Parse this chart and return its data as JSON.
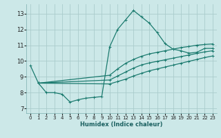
{
  "xlabel": "Humidex (Indice chaleur)",
  "xlim": [
    -0.5,
    23.5
  ],
  "ylim": [
    6.7,
    13.6
  ],
  "yticks": [
    7,
    8,
    9,
    10,
    11,
    12,
    13
  ],
  "xticks": [
    0,
    1,
    2,
    3,
    4,
    5,
    6,
    7,
    8,
    9,
    10,
    11,
    12,
    13,
    14,
    15,
    16,
    17,
    18,
    19,
    20,
    21,
    22,
    23
  ],
  "background_color": "#cce8e8",
  "grid_color": "#aacccc",
  "line_color": "#1a7a6e",
  "series": [
    {
      "x": [
        0,
        1,
        2,
        3,
        4,
        5,
        6,
        7,
        8,
        9,
        10,
        11,
        12,
        13,
        14,
        15,
        16,
        17,
        18,
        19,
        20,
        21,
        22,
        23
      ],
      "y": [
        9.7,
        8.6,
        8.0,
        8.0,
        7.9,
        7.4,
        7.55,
        7.65,
        7.7,
        7.75,
        10.9,
        12.0,
        12.6,
        13.2,
        12.8,
        12.4,
        11.8,
        11.1,
        10.75,
        10.65,
        10.5,
        10.55,
        10.8,
        10.8
      ]
    },
    {
      "x": [
        1,
        10,
        11,
        12,
        13,
        14,
        15,
        16,
        17,
        18,
        19,
        20,
        21,
        22,
        23
      ],
      "y": [
        8.6,
        9.1,
        9.5,
        9.85,
        10.1,
        10.3,
        10.45,
        10.55,
        10.65,
        10.75,
        10.85,
        10.92,
        11.0,
        11.05,
        11.08
      ]
    },
    {
      "x": [
        1,
        10,
        11,
        12,
        13,
        14,
        15,
        16,
        17,
        18,
        19,
        20,
        21,
        22,
        23
      ],
      "y": [
        8.6,
        8.8,
        9.05,
        9.3,
        9.55,
        9.75,
        9.88,
        9.98,
        10.08,
        10.18,
        10.28,
        10.38,
        10.48,
        10.58,
        10.65
      ]
    },
    {
      "x": [
        1,
        10,
        11,
        12,
        13,
        14,
        15,
        16,
        17,
        18,
        19,
        20,
        21,
        22,
        23
      ],
      "y": [
        8.6,
        8.55,
        8.7,
        8.85,
        9.05,
        9.22,
        9.38,
        9.5,
        9.62,
        9.74,
        9.86,
        9.98,
        10.1,
        10.22,
        10.32
      ]
    }
  ]
}
